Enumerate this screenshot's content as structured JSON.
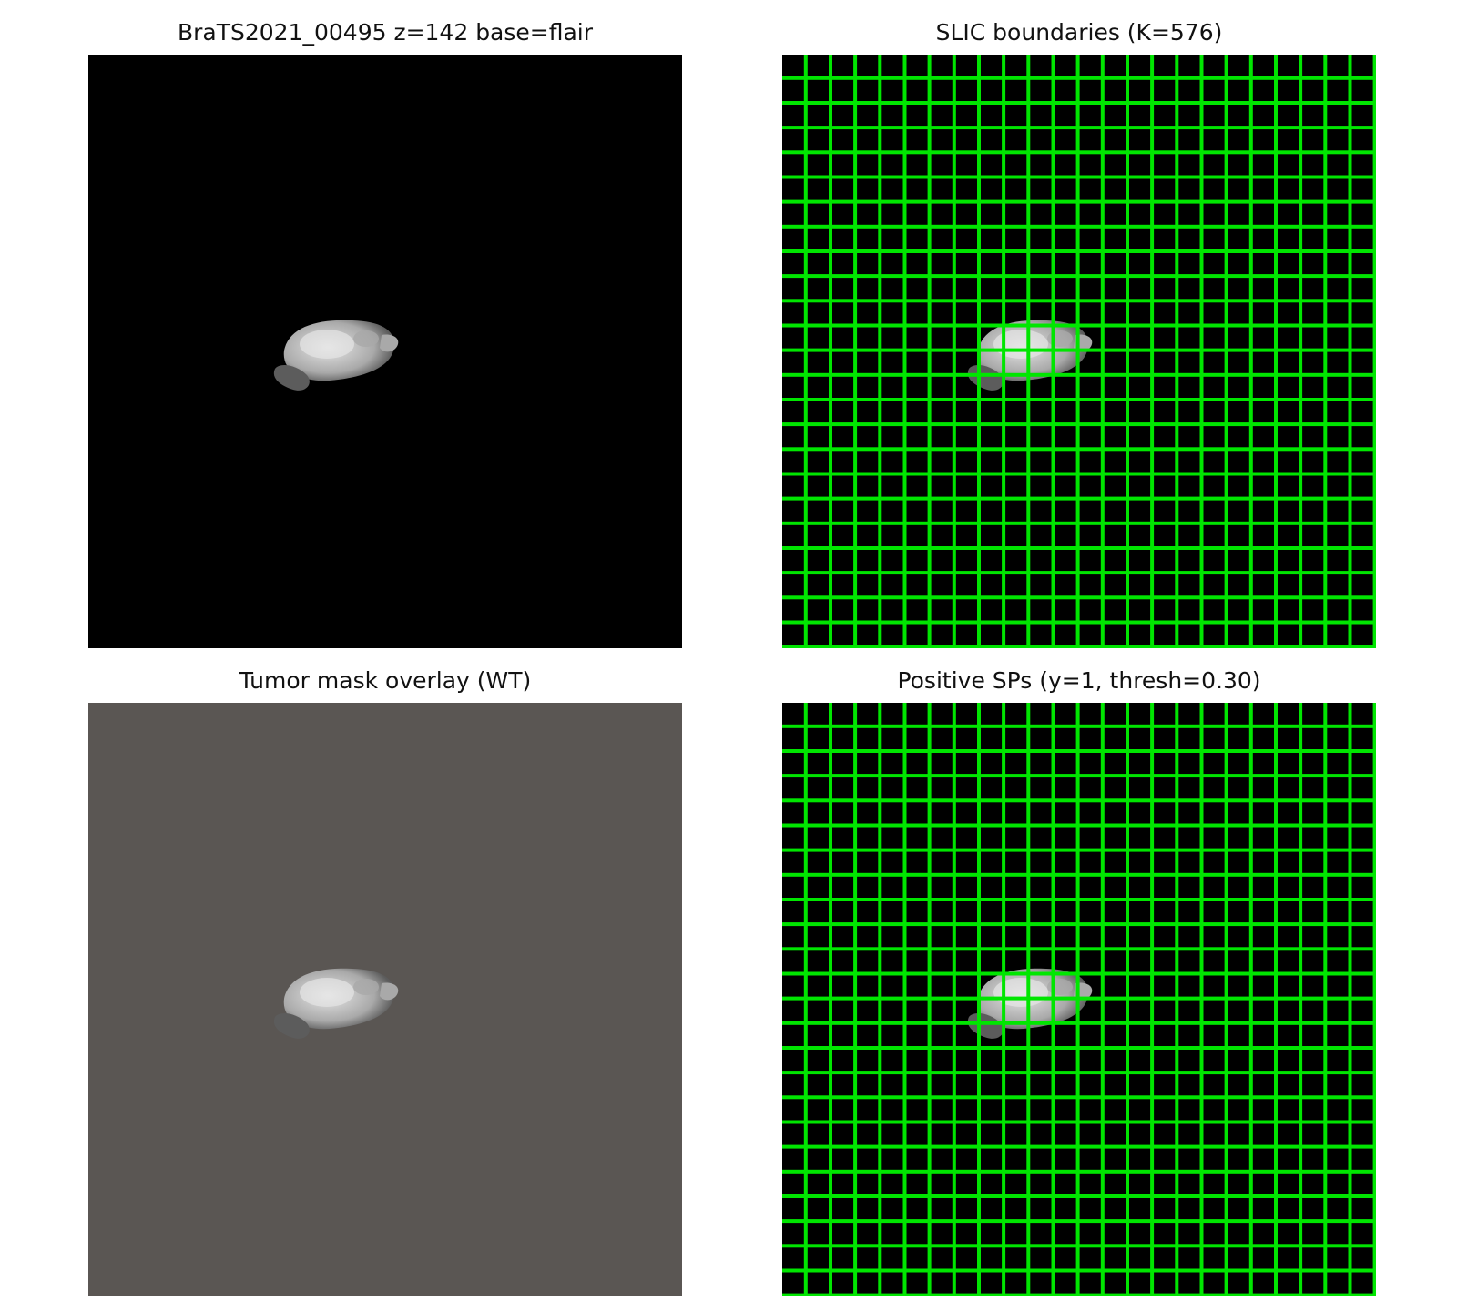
{
  "figure": {
    "panels": [
      {
        "id": "base",
        "title": "BraTS2021_00495 z=142  base=flair"
      },
      {
        "id": "slic",
        "title": "SLIC boundaries (K=576)"
      },
      {
        "id": "mask",
        "title": "Tumor mask overlay (WT)"
      },
      {
        "id": "positive",
        "title": "Positive SPs (y=1, thresh=0.30)"
      }
    ]
  },
  "colors": {
    "background": "#000000",
    "boundary": "#00e600",
    "overlay_tint": "#5a5653",
    "tissue_light": "#e6e6e6",
    "tissue_mid": "#a9a9a9",
    "tissue_dark": "#5c5c5c"
  },
  "slic": {
    "k": 576,
    "grid_cells_per_side": 24
  }
}
